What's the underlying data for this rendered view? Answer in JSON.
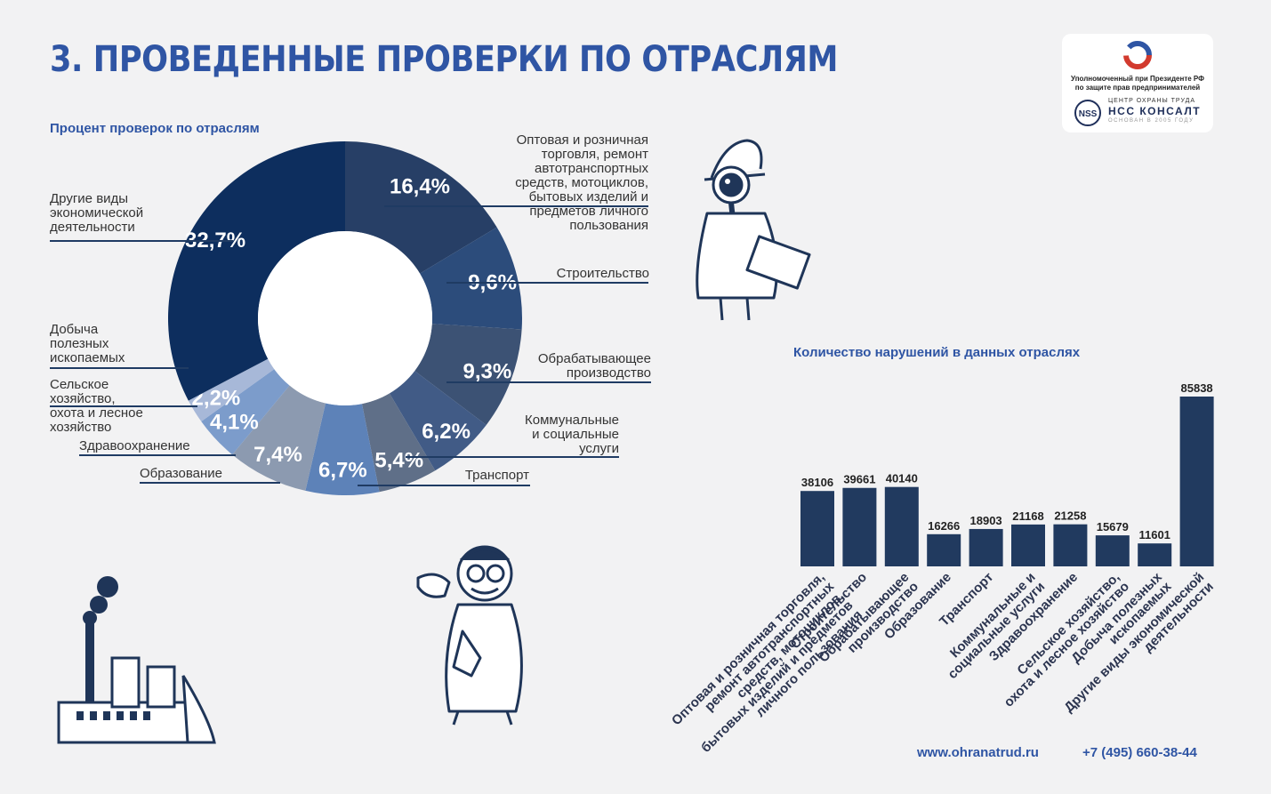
{
  "page": {
    "title": "3. ПРОВЕДЕННЫЕ ПРОВЕРКИ ПО ОТРАСЛЯМ",
    "website": "www.ohranatrud.ru",
    "phone": "+7 (495) 660-38-44"
  },
  "logo": {
    "line1": "Уполномоченный при Президенте РФ",
    "line2": "по защите прав предпринимателей",
    "nss_badge": "NSS",
    "nss_top": "ЦЕНТР ОХРАНЫ ТРУДА",
    "nss_main": "НСС КОНСАЛТ",
    "nss_sub": "ОСНОВАН В 2005 ГОДУ"
  },
  "colors": {
    "accent": "#2f55a4",
    "bar": "#213a5f",
    "background": "#f2f2f3"
  },
  "chart_data": [
    {
      "type": "pie",
      "title": "Процент проверок по отраслям",
      "slices": [
        {
          "label": "Оптовая и розничная торговля, ремонт автотранспортных средств, мотоциклов, бытовых изделий и предметов личного пользования",
          "value": 16.4,
          "value_label": "16,4%",
          "color": "#273f66"
        },
        {
          "label": "Строительство",
          "value": 9.6,
          "value_label": "9,6%",
          "color": "#2c4c7b"
        },
        {
          "label": "Обрабатывающее производство",
          "value": 9.3,
          "value_label": "9,3%",
          "color": "#3c5274"
        },
        {
          "label": "Коммунальные и социальные услуги",
          "value": 6.2,
          "value_label": "6,2%",
          "color": "#415b86"
        },
        {
          "label": "Транспорт",
          "value": 5.4,
          "value_label": "5,4%",
          "color": "#5f6f88"
        },
        {
          "label": "Образование",
          "value": 6.7,
          "value_label": "6,7%",
          "color": "#5d82b8"
        },
        {
          "label": "Здравоохранение",
          "value": 7.4,
          "value_label": "7,4%",
          "color": "#8c9ab0"
        },
        {
          "label": "Сельское хозяйство, охота и лесное хозяйство",
          "value": 4.1,
          "value_label": "4,1%",
          "color": "#7c9ccb"
        },
        {
          "label": "Добыча полезных ископаемых",
          "value": 2.2,
          "value_label": "2,2%",
          "color": "#a7b8d8"
        },
        {
          "label": "Другие виды экономической деятельности",
          "value": 32.7,
          "value_label": "32,7%",
          "color": "#0d2e5e"
        }
      ],
      "outer_labels": {
        "trade": [
          "Оптовая и розничная",
          "торговля, ремонт",
          "автотранспортных",
          "средств, мотоциклов,",
          "бытовых изделий и",
          "предметов личного",
          "пользования"
        ],
        "construction": [
          "Строительство"
        ],
        "manufacturing": [
          "Обрабатывающее",
          "производство"
        ],
        "utilities": [
          "Коммунальные",
          "и социальные",
          "услуги"
        ],
        "transport": [
          "Транспорт"
        ],
        "education": [
          "Образование"
        ],
        "health": [
          "Здравоохранение"
        ],
        "agriculture": [
          "Сельское",
          "хозяйство,",
          "охота и лесное",
          "хозяйство"
        ],
        "mining": [
          "Добыча",
          "полезных",
          "ископаемых"
        ],
        "other": [
          "Другие виды",
          "экономической",
          "деятельности"
        ]
      }
    },
    {
      "type": "bar",
      "title": "Количество нарушений в данных отраслях",
      "categories": [
        [
          "Оптовая и розничная торговля,",
          "ремонт автотранспортных",
          "средств, мотоциклов,",
          "бытовых изделий и предметов",
          "личного пользования"
        ],
        [
          "Строительство"
        ],
        [
          "Обрабатывающее",
          "производство"
        ],
        [
          "Образование"
        ],
        [
          "Транспорт"
        ],
        [
          "Коммунальные и",
          "социальные услуги"
        ],
        [
          "Здравоохранение"
        ],
        [
          "Сельское хозяйство,",
          "охота и лесное хозяйство"
        ],
        [
          "Добыча полезных",
          "ископаемых"
        ],
        [
          "Другие виды экономической",
          "деятельности"
        ]
      ],
      "values": [
        38106,
        39661,
        40140,
        16266,
        18903,
        21168,
        21258,
        15679,
        11601,
        85838
      ],
      "ylim": [
        0,
        85838
      ],
      "grid": false
    }
  ]
}
